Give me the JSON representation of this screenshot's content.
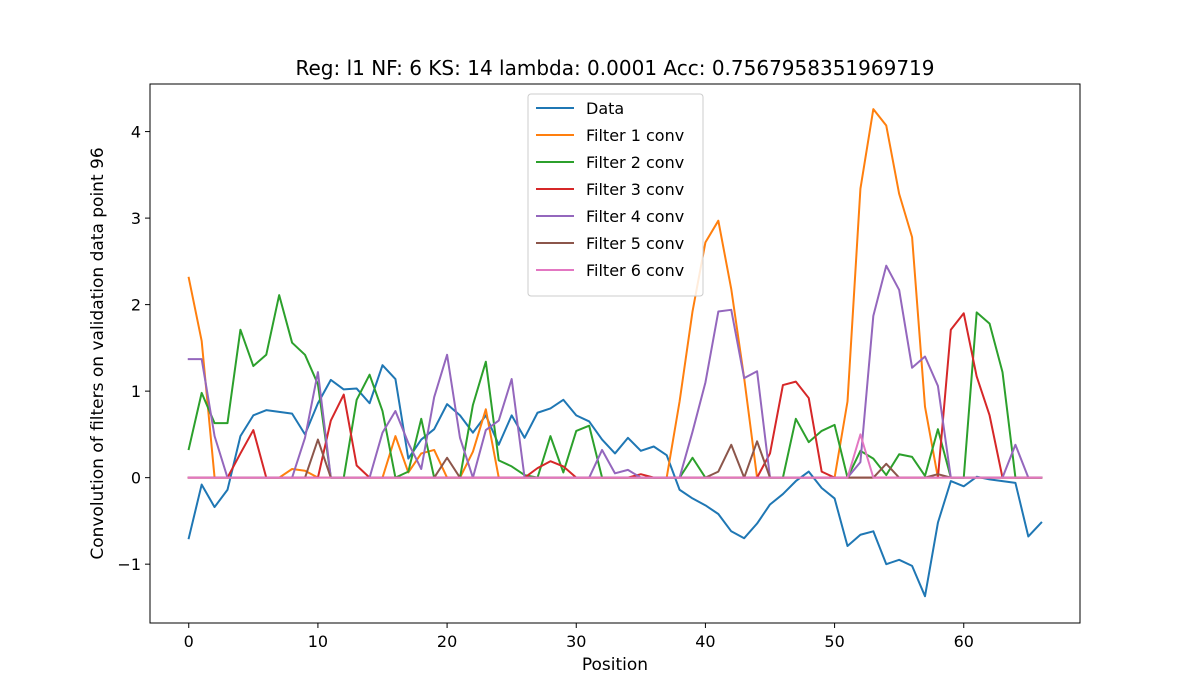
{
  "chart_data": {
    "type": "line",
    "title": "Reg: l1  NF: 6  KS: 14  lambda: 0.0001 Acc: 0.7567958351969719",
    "xlabel": "Position",
    "ylabel": "Convolution of filters on validation data point 96",
    "xlim": [
      -3,
      69
    ],
    "ylim": [
      -1.68,
      4.55
    ],
    "xticks": [
      0,
      10,
      20,
      30,
      40,
      50,
      60
    ],
    "yticks": [
      -1,
      0,
      1,
      2,
      3,
      4
    ],
    "ytick_labels": [
      "−1",
      "0",
      "1",
      "2",
      "3",
      "4"
    ],
    "grid": false,
    "legend_position": "upper-center",
    "series": [
      {
        "name": "Data",
        "color": "#1f77b4",
        "values": [
          -0.7,
          -0.08,
          -0.34,
          -0.14,
          0.48,
          0.72,
          0.78,
          0.76,
          0.74,
          0.5,
          0.86,
          1.13,
          1.02,
          1.03,
          0.86,
          1.3,
          1.14,
          0.22,
          0.44,
          0.56,
          0.85,
          0.72,
          0.52,
          0.72,
          0.38,
          0.72,
          0.46,
          0.75,
          0.8,
          0.9,
          0.72,
          0.65,
          0.44,
          0.28,
          0.46,
          0.31,
          0.36,
          0.26,
          -0.14,
          -0.24,
          -0.32,
          -0.42,
          -0.62,
          -0.7,
          -0.53,
          -0.31,
          -0.19,
          -0.04,
          0.07,
          -0.12,
          -0.24,
          -0.79,
          -0.66,
          -0.62,
          -1.0,
          -0.95,
          -1.02,
          -1.37,
          -0.52,
          -0.04,
          -0.1,
          0.01,
          -0.02,
          -0.04,
          -0.06,
          -0.68,
          -0.52
        ]
      },
      {
        "name": "Filter 1 conv",
        "color": "#ff7f0e",
        "values": [
          2.31,
          1.58,
          0,
          0,
          0,
          0,
          0,
          0,
          0.1,
          0.08,
          0,
          0,
          0,
          0,
          0,
          0,
          0.48,
          0.06,
          0.28,
          0.32,
          0,
          0,
          0.3,
          0.79,
          0,
          0,
          0,
          0,
          0,
          0,
          0,
          0,
          0,
          0,
          0,
          0,
          0,
          0,
          0.88,
          1.92,
          2.72,
          2.97,
          2.18,
          1.15,
          0,
          0,
          0,
          0,
          0,
          0,
          0,
          0.88,
          3.34,
          4.26,
          4.07,
          3.28,
          2.78,
          0.82,
          0,
          0,
          0,
          0,
          0,
          0,
          0,
          0,
          0
        ]
      },
      {
        "name": "Filter 2 conv",
        "color": "#2ca02c",
        "values": [
          0.33,
          0.98,
          0.63,
          0.63,
          1.71,
          1.29,
          1.42,
          2.11,
          1.56,
          1.42,
          1.08,
          0,
          0,
          0.9,
          1.19,
          0.77,
          0,
          0.07,
          0.68,
          0,
          0,
          0,
          0.84,
          1.34,
          0.2,
          0.13,
          0.03,
          0,
          0.48,
          0.06,
          0.54,
          0.6,
          0,
          0,
          0,
          0,
          0,
          0,
          0,
          0.23,
          0,
          0,
          0,
          0,
          0,
          0,
          0,
          0.68,
          0.41,
          0.54,
          0.61,
          0,
          0.31,
          0.22,
          0.03,
          0.27,
          0.24,
          0.02,
          0.56,
          0,
          0,
          1.91,
          1.78,
          1.22,
          0,
          0,
          0
        ]
      },
      {
        "name": "Filter 3 conv",
        "color": "#d62728",
        "values": [
          0,
          0,
          0,
          0,
          0.28,
          0.55,
          0,
          0,
          0,
          0,
          0,
          0.66,
          0.96,
          0.14,
          0,
          0,
          0,
          0,
          0,
          0,
          0,
          0,
          0,
          0,
          0,
          0,
          0,
          0.11,
          0.19,
          0.13,
          0,
          0,
          0,
          0,
          0,
          0.04,
          0,
          0,
          0,
          0,
          0,
          0,
          0,
          0,
          0,
          0.28,
          1.07,
          1.11,
          0.92,
          0.07,
          0,
          0,
          0,
          0,
          0,
          0,
          0,
          0,
          0,
          1.71,
          1.9,
          1.17,
          0.72,
          0,
          0,
          0,
          0
        ]
      },
      {
        "name": "Filter 4 conv",
        "color": "#9467bd",
        "values": [
          1.37,
          1.37,
          0.48,
          0,
          0,
          0,
          0,
          0,
          0,
          0.46,
          1.22,
          0,
          0,
          0,
          0,
          0.52,
          0.77,
          0.4,
          0.1,
          0.93,
          1.42,
          0.46,
          0,
          0.55,
          0.66,
          1.14,
          0,
          0,
          0,
          0,
          0,
          0,
          0.32,
          0.05,
          0.09,
          0,
          0,
          0,
          0,
          0.53,
          1.1,
          1.92,
          1.94,
          1.15,
          1.23,
          0,
          0,
          0,
          0,
          0,
          0,
          0,
          0.18,
          1.87,
          2.45,
          2.17,
          1.27,
          1.4,
          1.06,
          0,
          0,
          0,
          0,
          0,
          0.38,
          0,
          0
        ]
      },
      {
        "name": "Filter 5 conv",
        "color": "#8c564b",
        "values": [
          0,
          0,
          0,
          0,
          0,
          0,
          0,
          0,
          0,
          0,
          0.44,
          0,
          0,
          0,
          0,
          0,
          0,
          0,
          0,
          0,
          0.23,
          0,
          0,
          0,
          0,
          0,
          0,
          0,
          0,
          0,
          0,
          0,
          0,
          0,
          0,
          0,
          0,
          0,
          0,
          0,
          0,
          0.07,
          0.38,
          0,
          0.42,
          0,
          0,
          0,
          0,
          0,
          0,
          0,
          0,
          0,
          0.16,
          0,
          0,
          0,
          0.04,
          0,
          0,
          0,
          0,
          0,
          0,
          0,
          0
        ]
      },
      {
        "name": "Filter 6 conv",
        "color": "#e377c2",
        "values": [
          0,
          0,
          0,
          0,
          0,
          0,
          0,
          0,
          0,
          0,
          0,
          0,
          0,
          0,
          0,
          0,
          0,
          0,
          0,
          0,
          0,
          0,
          0,
          0,
          0,
          0,
          0,
          0,
          0,
          0,
          0,
          0,
          0,
          0,
          0,
          0,
          0,
          0,
          0,
          0,
          0,
          0,
          0,
          0,
          0,
          0,
          0,
          0,
          0,
          0,
          0,
          0,
          0.5,
          0,
          0,
          0,
          0,
          0,
          0,
          0,
          0,
          0,
          0,
          0,
          0,
          0,
          0
        ]
      }
    ]
  }
}
